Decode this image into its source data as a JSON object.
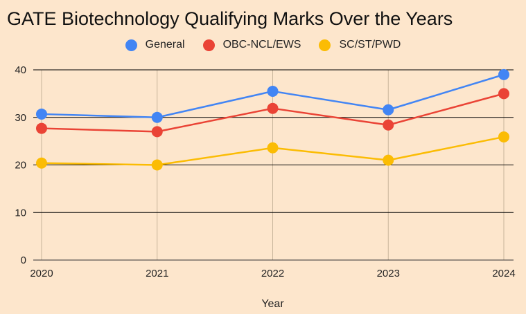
{
  "chart_data": {
    "type": "line",
    "title": "GATE Biotechnology Qualifying Marks Over the Years",
    "xlabel": "Year",
    "ylabel": "",
    "x": [
      "2020",
      "2021",
      "2022",
      "2023",
      "2024"
    ],
    "ylim": [
      0,
      40
    ],
    "yticks": [
      0,
      10,
      20,
      30,
      40
    ],
    "grid": true,
    "legend_position": "top-center",
    "series": [
      {
        "name": "General",
        "color": "#4285f4",
        "values": [
          30.7,
          30.0,
          35.5,
          31.6,
          39.0
        ]
      },
      {
        "name": "OBC-NCL/EWS",
        "color": "#ea4335",
        "values": [
          27.7,
          27.0,
          31.9,
          28.4,
          35.0
        ]
      },
      {
        "name": "SC/ST/PWD",
        "color": "#fbbc04",
        "values": [
          20.4,
          20.0,
          23.6,
          21.0,
          25.9
        ]
      }
    ]
  },
  "colors": {
    "background": "#fde6cc",
    "gridline": "#000000",
    "vertical_gridline": "#c8b49a"
  }
}
